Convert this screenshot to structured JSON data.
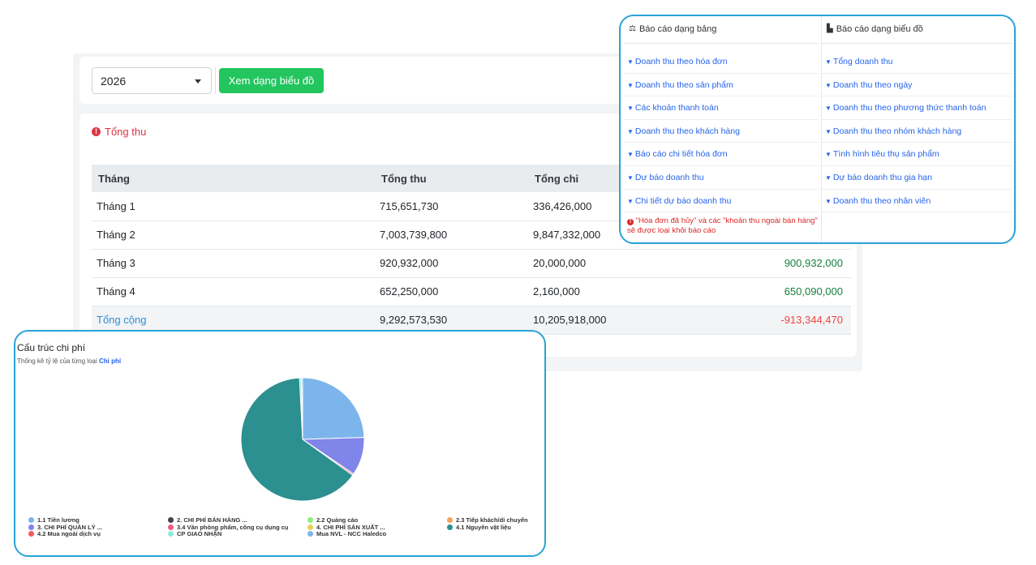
{
  "filter": {
    "year": "2026",
    "view_chart_button": "Xem dạng biểu đồ"
  },
  "section": {
    "title": "Tổng thu"
  },
  "table": {
    "headers": [
      "Tháng",
      "Tổng thu",
      "Tổng chi",
      ""
    ],
    "rows": [
      [
        "Tháng 1",
        "715,651,730",
        "336,426,000",
        ""
      ],
      [
        "Tháng 2",
        "7,003,739,800",
        "9,847,332,000",
        ""
      ],
      [
        "Tháng 3",
        "920,932,000",
        "20,000,000",
        "900,932,000"
      ],
      [
        "Tháng 4",
        "652,250,000",
        "2,160,000",
        "650,090,000"
      ]
    ],
    "total": [
      "Tổng cộng",
      "9,292,573,530",
      "10,205,918,000",
      "-913,344,470"
    ]
  },
  "reports": {
    "table_header": "Báo cáo dạng bảng",
    "chart_header": "Báo cáo dạng biểu đồ",
    "table_items": [
      "Doanh thu theo hóa đơn",
      "Doanh thu theo sản phẩm",
      "Các khoản thanh toán",
      "Doanh thu theo khách hàng",
      "Báo cáo chi tiết hóa đơn",
      "Dự báo doanh thu",
      "Chi tiết dự báo doanh thu"
    ],
    "chart_items": [
      "Tổng doanh thu",
      "Doanh thu theo ngày",
      "Doanh thu theo phương thức thanh toán",
      "Doanh thu theo nhóm khách hàng",
      "Tình hình tiêu thụ sản phẩm",
      "Dự báo doanh thu gia hạn",
      "Doanh thu theo nhân viên"
    ],
    "note_line1": "\"Hóa đơn đã hủy\" và các \"khoản thu ngoài bán hàng\"",
    "note_line2": "sẽ được loại khỏi báo cáo"
  },
  "chart_panel": {
    "title": "Cấu trúc chi phí",
    "subtitle_prefix": "Thống kê tỷ lệ của từng loại",
    "subtitle_highlight": "Chi phí"
  },
  "chart_data": {
    "type": "pie",
    "title": "Cấu trúc chi phí",
    "slices": [
      {
        "name": "1.1 Tiền lương",
        "value": 24.5,
        "color": "#7cb5ec"
      },
      {
        "name": "3. CHI PHÍ QUẢN LÝ ...",
        "value": 10.0,
        "color": "#8085e9"
      },
      {
        "name": "3.4 Văn phòng phẩm, công cụ dụng cụ",
        "value": 0.4,
        "color": "#f15c80"
      },
      {
        "name": "4.1 Nguyên vật liệu",
        "value": 64.3,
        "color": "#2b908f"
      },
      {
        "name": "CP GIAO NHẬN",
        "value": 0.5,
        "color": "#91e8e1"
      },
      {
        "name": "Mua NVL - NCC Haledco",
        "value": 0.3,
        "color": "#7cb5ec"
      }
    ],
    "legend": [
      {
        "name": "1.1 Tiền lương",
        "color": "#7cb5ec"
      },
      {
        "name": "2. CHI PHÍ BÁN HÀNG ...",
        "color": "#434348"
      },
      {
        "name": "2.2 Quảng cáo",
        "color": "#90ed7d"
      },
      {
        "name": "2.3 Tiếp khách/di chuyển",
        "color": "#f7a35c"
      },
      {
        "name": "3. CHI PHÍ QUẢN LÝ ...",
        "color": "#8085e9"
      },
      {
        "name": "3.4 Văn phòng phẩm, công cụ dụng cụ",
        "color": "#f15c80"
      },
      {
        "name": "4. CHI PHÍ SẢN XUẤT ...",
        "color": "#e4d354"
      },
      {
        "name": "4.1 Nguyên vật liệu",
        "color": "#2b908f"
      },
      {
        "name": "4.2 Mua ngoài dịch vụ",
        "color": "#f45b5b"
      },
      {
        "name": "CP GIAO NHẬN",
        "color": "#91e8e1"
      },
      {
        "name": "Mua NVL - NCC Haledco",
        "color": "#7cb5ec"
      }
    ]
  }
}
